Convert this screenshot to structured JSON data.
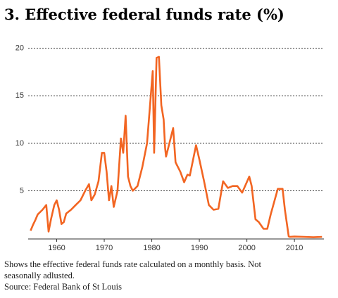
{
  "chart_data": {
    "type": "line",
    "title": "3. Effective federal funds rate (%)",
    "note": "Shows the effective federal funds rate calculated on a monthly basis. Not seasonally adlusted.",
    "source": "Source: Federal Bank of St Louis",
    "color": "#f26522",
    "x": [
      1954.5,
      1955,
      1955.5,
      1956,
      1957,
      1957.8,
      1958.3,
      1958.8,
      1959.5,
      1960,
      1960.5,
      1961,
      1961.5,
      1962,
      1963,
      1964,
      1965,
      1966,
      1966.8,
      1967.3,
      1968,
      1968.8,
      1969.5,
      1970,
      1970.5,
      1971,
      1971.5,
      1972,
      1972.8,
      1973.5,
      1974,
      1974.5,
      1975,
      1975.5,
      1976,
      1977,
      1978,
      1979,
      1980.2,
      1980.5,
      1981,
      1981.5,
      1982,
      1982.5,
      1982.8,
      1983,
      1984.5,
      1985,
      1986,
      1986.8,
      1987.5,
      1988,
      1989.3,
      1990,
      1991,
      1992,
      1993,
      1994,
      1995,
      1996,
      1997,
      1998,
      1999,
      2000.5,
      2001,
      2001.8,
      2002.5,
      2003.5,
      2004.3,
      2005,
      2006.5,
      2007.5,
      2008,
      2008.8,
      2009,
      2010,
      2012,
      2014,
      2015.8
    ],
    "values": [
      0.8,
      1.4,
      1.9,
      2.5,
      3.0,
      3.5,
      0.7,
      2.0,
      3.5,
      4.0,
      3.0,
      1.5,
      1.7,
      2.6,
      3.0,
      3.5,
      4.0,
      5.0,
      5.7,
      4.0,
      4.6,
      6.0,
      9.0,
      9.0,
      7.0,
      4.0,
      5.5,
      3.3,
      5.0,
      10.5,
      9.0,
      12.9,
      6.5,
      5.5,
      5.0,
      5.5,
      7.5,
      10.0,
      17.6,
      9.0,
      19.0,
      19.1,
      14.0,
      12.5,
      9.5,
      8.6,
      11.6,
      8.0,
      7.0,
      5.9,
      6.7,
      6.6,
      9.8,
      8.3,
      6.0,
      3.5,
      3.0,
      3.1,
      6.0,
      5.3,
      5.5,
      5.5,
      4.8,
      6.5,
      5.5,
      2.0,
      1.7,
      1.0,
      1.0,
      2.5,
      5.2,
      5.2,
      3.0,
      0.2,
      0.15,
      0.18,
      0.15,
      0.1,
      0.15
    ],
    "xlim": [
      1954,
      2016.2
    ],
    "xticks": [
      1960,
      1970,
      1980,
      1990,
      2000,
      2010
    ],
    "ylim": [
      0,
      20.5
    ],
    "yticks": [
      5,
      10,
      15,
      20
    ],
    "grid": true
  }
}
